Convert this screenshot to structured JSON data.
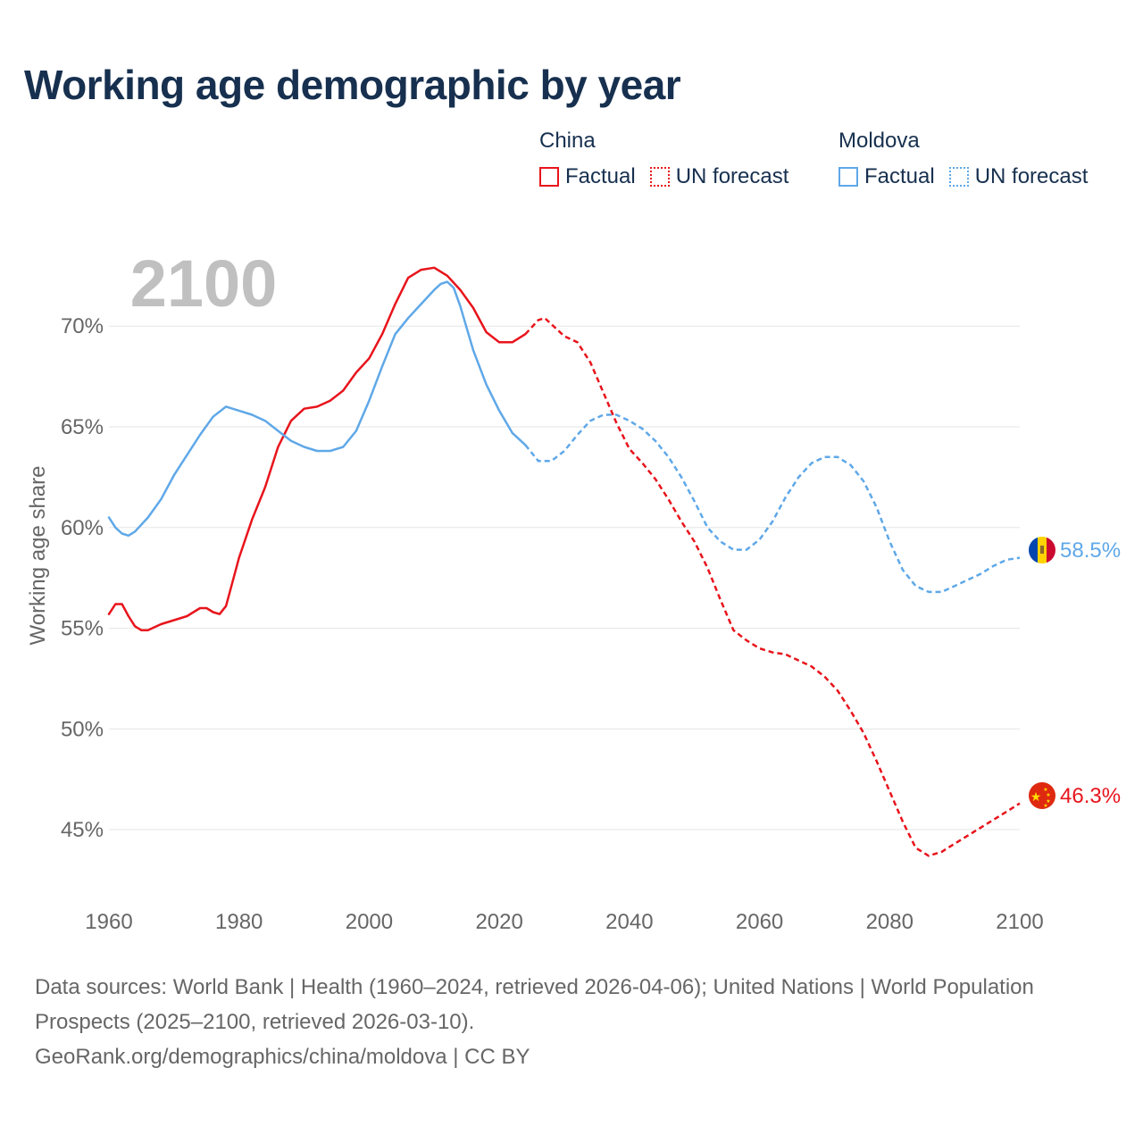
{
  "title": "Working age demographic by year",
  "year_display": "2100",
  "legend": [
    {
      "country": "China",
      "factual_label": "Factual",
      "forecast_label": "UN forecast",
      "color": "#e8141c"
    },
    {
      "country": "Moldova",
      "factual_label": "Factual",
      "forecast_label": "UN forecast",
      "color": "#5fa8e8"
    }
  ],
  "footer": {
    "sources": "Data sources: World Bank | Health (1960–2024, retrieved 2026-04-06); United Nations | World Population Prospects (2025–2100, retrieved 2026-03-10).",
    "credit": "GeoRank.org/demographics/china/moldova | CC BY"
  },
  "colors": {
    "title": "#17304f",
    "grid": "#e6e6e6",
    "axis_text": "#666666",
    "year_watermark": "#c0c0c0"
  },
  "chart_data": {
    "type": "line",
    "title": "Working age demographic by year",
    "xlabel": "",
    "ylabel": "Working age share",
    "xlim": [
      1960,
      2100
    ],
    "ylim": [
      41.5,
      74
    ],
    "x_ticks": [
      1960,
      1980,
      2000,
      2020,
      2040,
      2060,
      2080,
      2100
    ],
    "y_ticks": [
      {
        "value": 45,
        "label": "45%"
      },
      {
        "value": 50,
        "label": "50%"
      },
      {
        "value": 55,
        "label": "55%"
      },
      {
        "value": 60,
        "label": "60%"
      },
      {
        "value": 65,
        "label": "65%"
      },
      {
        "value": 70,
        "label": "70%"
      }
    ],
    "forecast_start": 2024,
    "series": [
      {
        "name": "China",
        "color": "#e8141c",
        "end_label": "46.3%",
        "flag": "china",
        "points": [
          [
            1960,
            55.7
          ],
          [
            1961,
            56.2
          ],
          [
            1962,
            56.2
          ],
          [
            1963,
            55.6
          ],
          [
            1964,
            55.1
          ],
          [
            1965,
            54.9
          ],
          [
            1966,
            54.9
          ],
          [
            1968,
            55.2
          ],
          [
            1970,
            55.4
          ],
          [
            1972,
            55.6
          ],
          [
            1974,
            56.0
          ],
          [
            1975,
            56.0
          ],
          [
            1976,
            55.8
          ],
          [
            1977,
            55.7
          ],
          [
            1978,
            56.1
          ],
          [
            1980,
            58.5
          ],
          [
            1982,
            60.4
          ],
          [
            1984,
            62.0
          ],
          [
            1986,
            64.0
          ],
          [
            1988,
            65.3
          ],
          [
            1990,
            65.9
          ],
          [
            1992,
            66.0
          ],
          [
            1994,
            66.3
          ],
          [
            1996,
            66.8
          ],
          [
            1998,
            67.7
          ],
          [
            2000,
            68.4
          ],
          [
            2002,
            69.6
          ],
          [
            2004,
            71.1
          ],
          [
            2006,
            72.4
          ],
          [
            2008,
            72.8
          ],
          [
            2010,
            72.9
          ],
          [
            2012,
            72.5
          ],
          [
            2014,
            71.8
          ],
          [
            2016,
            70.9
          ],
          [
            2018,
            69.7
          ],
          [
            2020,
            69.2
          ],
          [
            2022,
            69.2
          ],
          [
            2024,
            69.6
          ],
          [
            2026,
            70.3
          ],
          [
            2027,
            70.4
          ],
          [
            2028,
            70.1
          ],
          [
            2030,
            69.5
          ],
          [
            2032,
            69.2
          ],
          [
            2034,
            68.2
          ],
          [
            2036,
            66.7
          ],
          [
            2038,
            65.2
          ],
          [
            2040,
            63.9
          ],
          [
            2042,
            63.2
          ],
          [
            2044,
            62.4
          ],
          [
            2046,
            61.4
          ],
          [
            2048,
            60.3
          ],
          [
            2050,
            59.3
          ],
          [
            2052,
            58.0
          ],
          [
            2054,
            56.4
          ],
          [
            2056,
            54.9
          ],
          [
            2058,
            54.4
          ],
          [
            2060,
            54.0
          ],
          [
            2062,
            53.8
          ],
          [
            2064,
            53.7
          ],
          [
            2066,
            53.4
          ],
          [
            2068,
            53.1
          ],
          [
            2070,
            52.6
          ],
          [
            2072,
            51.9
          ],
          [
            2074,
            50.9
          ],
          [
            2076,
            49.8
          ],
          [
            2078,
            48.4
          ],
          [
            2080,
            46.9
          ],
          [
            2082,
            45.4
          ],
          [
            2084,
            44.1
          ],
          [
            2086,
            43.7
          ],
          [
            2088,
            43.9
          ],
          [
            2090,
            44.3
          ],
          [
            2092,
            44.7
          ],
          [
            2094,
            45.1
          ],
          [
            2096,
            45.5
          ],
          [
            2098,
            45.9
          ],
          [
            2100,
            46.3
          ]
        ]
      },
      {
        "name": "Moldova",
        "color": "#5fa8e8",
        "end_label": "58.5%",
        "flag": "moldova",
        "points": [
          [
            1960,
            60.5
          ],
          [
            1961,
            60.0
          ],
          [
            1962,
            59.7
          ],
          [
            1963,
            59.6
          ],
          [
            1964,
            59.8
          ],
          [
            1966,
            60.5
          ],
          [
            1968,
            61.4
          ],
          [
            1970,
            62.6
          ],
          [
            1972,
            63.6
          ],
          [
            1974,
            64.6
          ],
          [
            1976,
            65.5
          ],
          [
            1978,
            66.0
          ],
          [
            1980,
            65.8
          ],
          [
            1982,
            65.6
          ],
          [
            1984,
            65.3
          ],
          [
            1986,
            64.8
          ],
          [
            1988,
            64.3
          ],
          [
            1990,
            64.0
          ],
          [
            1992,
            63.8
          ],
          [
            1994,
            63.8
          ],
          [
            1996,
            64.0
          ],
          [
            1998,
            64.8
          ],
          [
            2000,
            66.3
          ],
          [
            2002,
            68.0
          ],
          [
            2004,
            69.6
          ],
          [
            2006,
            70.4
          ],
          [
            2008,
            71.1
          ],
          [
            2010,
            71.8
          ],
          [
            2011,
            72.1
          ],
          [
            2012,
            72.2
          ],
          [
            2013,
            71.9
          ],
          [
            2014,
            71.0
          ],
          [
            2016,
            68.8
          ],
          [
            2018,
            67.1
          ],
          [
            2020,
            65.8
          ],
          [
            2022,
            64.7
          ],
          [
            2024,
            64.1
          ],
          [
            2026,
            63.3
          ],
          [
            2028,
            63.3
          ],
          [
            2030,
            63.8
          ],
          [
            2032,
            64.6
          ],
          [
            2034,
            65.3
          ],
          [
            2036,
            65.6
          ],
          [
            2038,
            65.6
          ],
          [
            2040,
            65.3
          ],
          [
            2042,
            64.9
          ],
          [
            2044,
            64.3
          ],
          [
            2046,
            63.5
          ],
          [
            2048,
            62.5
          ],
          [
            2050,
            61.3
          ],
          [
            2052,
            60.0
          ],
          [
            2054,
            59.3
          ],
          [
            2056,
            58.9
          ],
          [
            2058,
            58.9
          ],
          [
            2060,
            59.4
          ],
          [
            2062,
            60.3
          ],
          [
            2064,
            61.5
          ],
          [
            2066,
            62.5
          ],
          [
            2068,
            63.2
          ],
          [
            2070,
            63.5
          ],
          [
            2072,
            63.5
          ],
          [
            2074,
            63.1
          ],
          [
            2076,
            62.3
          ],
          [
            2078,
            61.0
          ],
          [
            2080,
            59.3
          ],
          [
            2082,
            57.9
          ],
          [
            2084,
            57.1
          ],
          [
            2086,
            56.8
          ],
          [
            2088,
            56.8
          ],
          [
            2090,
            57.1
          ],
          [
            2092,
            57.4
          ],
          [
            2094,
            57.7
          ],
          [
            2096,
            58.1
          ],
          [
            2098,
            58.4
          ],
          [
            2100,
            58.5
          ]
        ]
      }
    ]
  }
}
